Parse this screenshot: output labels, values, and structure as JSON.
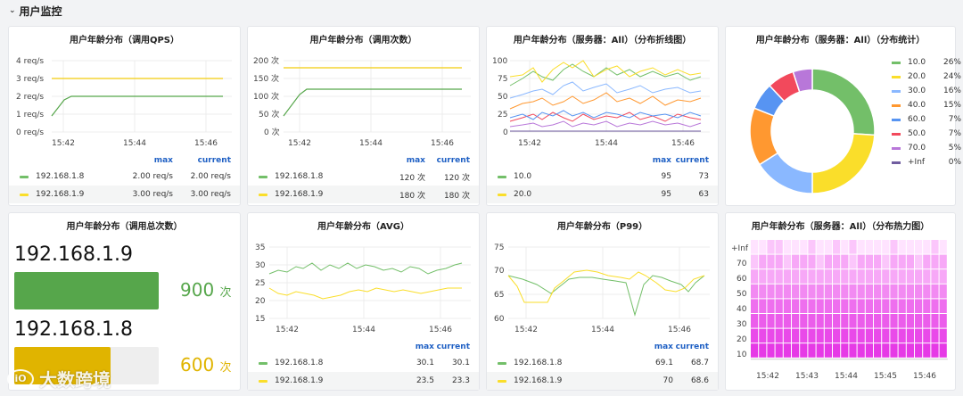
{
  "row": {
    "title": "用户监控",
    "collapse_icon": "chevron-down-icon"
  },
  "panels": {
    "qps": {
      "title": "用户年龄分布（调用QPS）",
      "y_ticks": [
        "4 req/s",
        "3 req/s",
        "2 req/s",
        "1 req/s",
        "0 req/s"
      ],
      "x_ticks": [
        "15:42",
        "15:44",
        "15:46"
      ],
      "legend_headers": [
        "max",
        "current"
      ],
      "legend": [
        {
          "name": "192.168.1.8",
          "max": "2.00 req/s",
          "current": "2.00 req/s",
          "color": "#73bf69"
        },
        {
          "name": "192.168.1.9",
          "max": "3.00 req/s",
          "current": "3.00 req/s",
          "color": "#fade2a"
        }
      ]
    },
    "calls": {
      "title": "用户年龄分布（调用次数）",
      "y_ticks": [
        "200 次",
        "150 次",
        "100 次",
        "50 次",
        "0 次"
      ],
      "x_ticks": [
        "15:42",
        "15:44",
        "15:46"
      ],
      "legend_headers": [
        "max",
        "current"
      ],
      "legend": [
        {
          "name": "192.168.1.8",
          "max": "120 次",
          "current": "120 次",
          "color": "#73bf69"
        },
        {
          "name": "192.168.1.9",
          "max": "180 次",
          "current": "180 次",
          "color": "#fade2a"
        }
      ]
    },
    "dist_line": {
      "title": "用户年龄分布（服务器：All）（分布折线图）",
      "y_ticks": [
        "100",
        "75",
        "50",
        "25",
        "0"
      ],
      "x_ticks": [
        "15:42",
        "15:44",
        "15:46"
      ],
      "legend_headers": [
        "max",
        "current"
      ],
      "legend": [
        {
          "name": "10.0",
          "max": "95",
          "current": "73",
          "color": "#73bf69"
        },
        {
          "name": "20.0",
          "max": "95",
          "current": "63",
          "color": "#fade2a"
        }
      ]
    },
    "dist_pie": {
      "title": "用户年龄分布（服务器：All）（分布统计）",
      "items": [
        {
          "name": "10.0",
          "pct": "26%",
          "value": 26,
          "color": "#73bf69"
        },
        {
          "name": "20.0",
          "pct": "24%",
          "value": 24,
          "color": "#fade2a"
        },
        {
          "name": "30.0",
          "pct": "16%",
          "value": 16,
          "color": "#8ab8ff"
        },
        {
          "name": "40.0",
          "pct": "15%",
          "value": 15,
          "color": "#ff9830"
        },
        {
          "name": "60.0",
          "pct": "7%",
          "value": 7,
          "color": "#5794f2"
        },
        {
          "name": "50.0",
          "pct": "7%",
          "value": 7,
          "color": "#f2495c"
        },
        {
          "name": "70.0",
          "pct": "5%",
          "value": 5,
          "color": "#b877d9"
        },
        {
          "name": "+Inf",
          "pct": "0%",
          "value": 0,
          "color": "#705da0"
        }
      ]
    },
    "total": {
      "title": "用户年龄分布（调用总次数）",
      "items": [
        {
          "name": "192.168.1.9",
          "value": "900",
          "unit": "次",
          "fraction": 1.0,
          "color": "#56a64b"
        },
        {
          "name": "192.168.1.8",
          "value": "600",
          "unit": "次",
          "fraction": 0.667,
          "color": "#e0b400"
        }
      ]
    },
    "avg": {
      "title": "用户年龄分布（AVG）",
      "y_ticks": [
        "35",
        "30",
        "25",
        "20",
        "15"
      ],
      "x_ticks": [
        "15:42",
        "15:44",
        "15:46"
      ],
      "legend_headers": [
        "max",
        "current"
      ],
      "legend": [
        {
          "name": "192.168.1.8",
          "max": "30.1",
          "current": "30.1",
          "color": "#73bf69"
        },
        {
          "name": "192.168.1.9",
          "max": "23.5",
          "current": "23.3",
          "color": "#fade2a"
        }
      ]
    },
    "p99": {
      "title": "用户年龄分布（P99）",
      "y_ticks": [
        "75",
        "70",
        "65",
        "60"
      ],
      "x_ticks": [
        "15:42",
        "15:44",
        "15:46"
      ],
      "legend_headers": [
        "max",
        "current"
      ],
      "legend": [
        {
          "name": "192.168.1.8",
          "max": "69.1",
          "current": "68.7",
          "color": "#73bf69"
        },
        {
          "name": "192.168.1.9",
          "max": "70",
          "current": "68.6",
          "color": "#fade2a"
        }
      ]
    },
    "heatmap": {
      "title": "用户年龄分布（服务器：All）（分布热力图）",
      "y_ticks": [
        "+Inf",
        "70",
        "60",
        "50",
        "40",
        "30",
        "20",
        "10"
      ],
      "x_ticks": [
        "15:42",
        "15:43",
        "15:44",
        "15:45",
        "15:46"
      ]
    }
  },
  "watermark": {
    "text": "大数跨境",
    "logo": "iO"
  }
}
